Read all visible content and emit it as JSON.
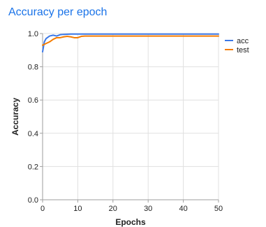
{
  "colors": {
    "title": "#1a73e8",
    "acc": "#3b78e7",
    "test": "#f57c00",
    "axis": "#9e9e9e",
    "grid": "#e0e0e0",
    "text": "#212121"
  },
  "chart_data": {
    "type": "line",
    "title": "Accuracy per epoch",
    "xlabel": "Epochs",
    "ylabel": "Accuracy",
    "xlim": [
      0,
      50
    ],
    "ylim": [
      0,
      1.0
    ],
    "xticks": [
      "0",
      "10",
      "20",
      "30",
      "40",
      "50"
    ],
    "yticks": [
      "0.0",
      "0.2",
      "0.4",
      "0.6",
      "0.8",
      "1.0"
    ],
    "legend_position": "right",
    "grid": true,
    "series": [
      {
        "name": "acc",
        "color": "#3b78e7",
        "x": [
          0,
          0.5,
          1,
          2,
          3,
          4,
          5,
          6,
          7,
          8,
          9,
          10,
          12,
          15,
          20,
          25,
          30,
          35,
          40,
          45,
          50
        ],
        "y": [
          0.89,
          0.95,
          0.97,
          0.985,
          0.99,
          0.985,
          0.993,
          0.995,
          0.996,
          0.997,
          0.997,
          0.997,
          0.997,
          0.997,
          0.997,
          0.997,
          0.997,
          0.997,
          0.997,
          0.997,
          0.997
        ]
      },
      {
        "name": "test",
        "color": "#f57c00",
        "x": [
          0,
          0.5,
          1,
          2,
          3,
          4,
          5,
          6,
          7,
          8,
          9,
          10,
          11,
          12,
          15,
          20,
          25,
          30,
          35,
          40,
          45,
          50
        ],
        "y": [
          0.93,
          0.935,
          0.94,
          0.95,
          0.965,
          0.975,
          0.975,
          0.98,
          0.983,
          0.98,
          0.975,
          0.975,
          0.983,
          0.985,
          0.985,
          0.985,
          0.985,
          0.985,
          0.985,
          0.985,
          0.985,
          0.985
        ]
      }
    ]
  }
}
